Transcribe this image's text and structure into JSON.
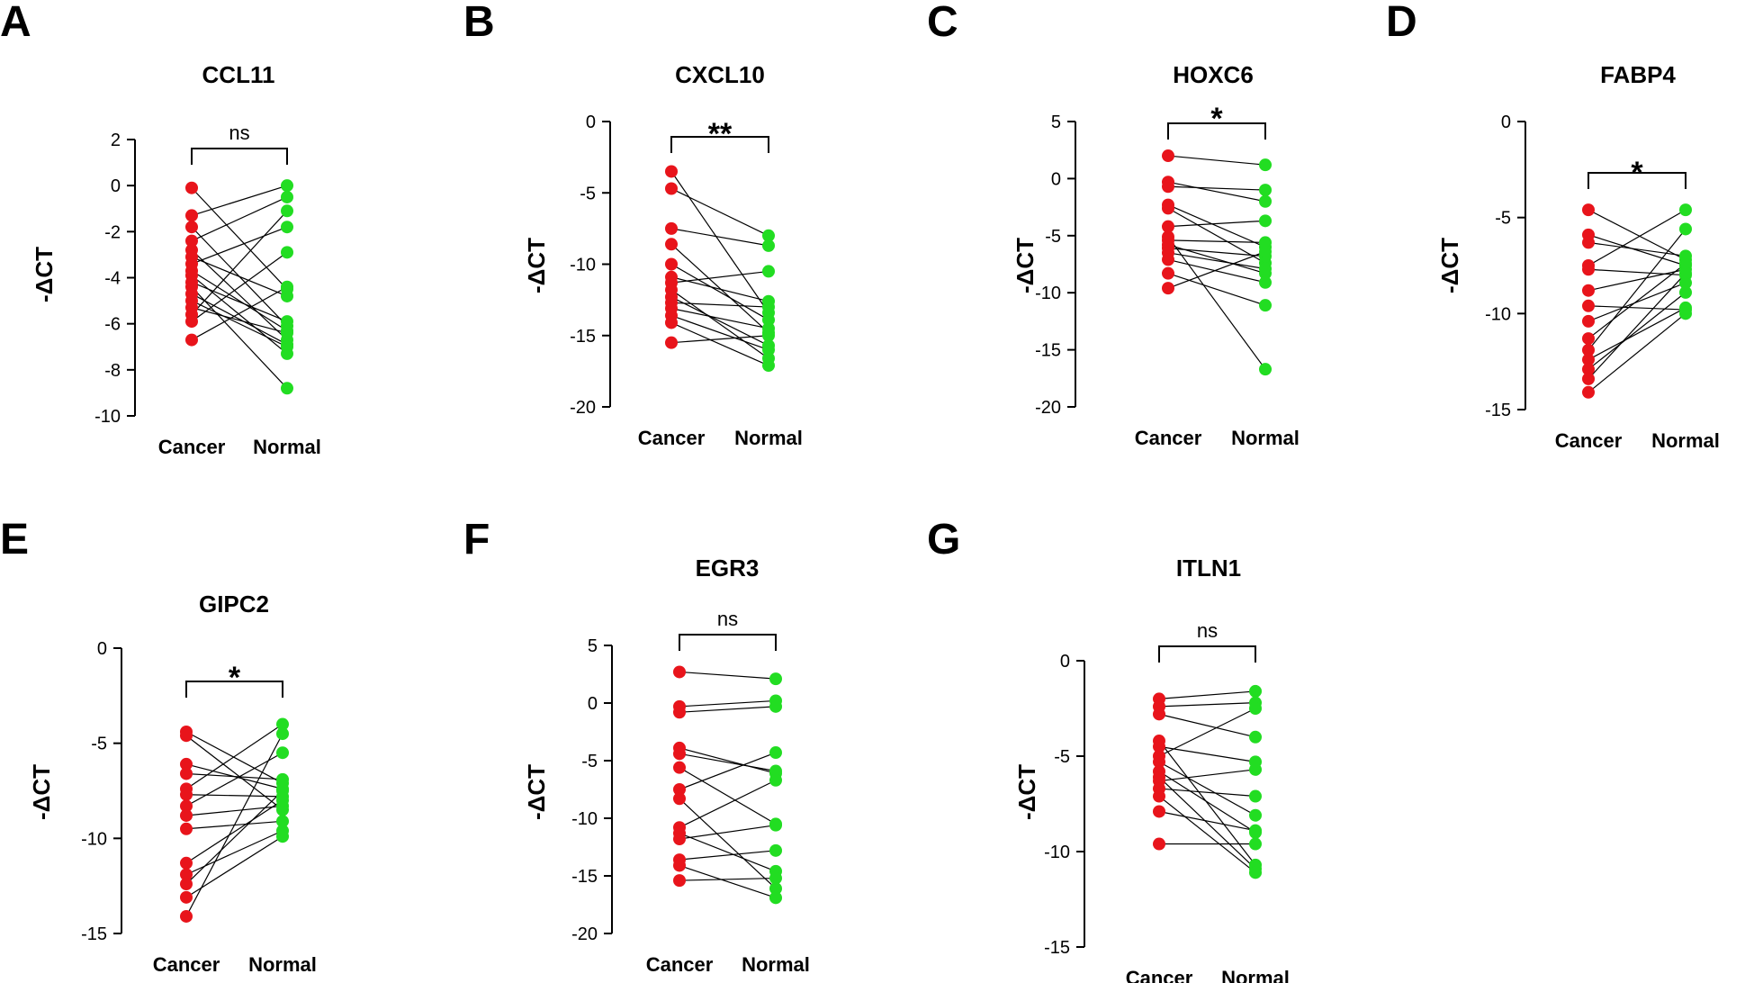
{
  "figure": {
    "point_colors": {
      "Cancer": "#e8141b",
      "Normal": "#22dd22"
    },
    "line_color": "#000000"
  },
  "chart_data": [
    {
      "panel": "A",
      "type": "scatter",
      "title": "CCL11",
      "ylabel": "-ΔCT",
      "categories": [
        "Cancer",
        "Normal"
      ],
      "ylim": [
        -10,
        2
      ],
      "yticks": [
        2,
        0,
        -2,
        -4,
        -6,
        -8,
        -10
      ],
      "ytick_labels": [
        "2",
        "0",
        "-2",
        "-4",
        "-6",
        "-8",
        "-10"
      ],
      "significance": "ns",
      "series": [
        {
          "name": "Cancer",
          "values": [
            -0.1,
            -1.3,
            -1.8,
            -2.4,
            -2.8,
            -3.1,
            -3.4,
            -3.7,
            -3.9,
            -4.2,
            -4.4,
            -4.7,
            -5.0,
            -5.3,
            -5.6,
            -5.9,
            -6.7
          ]
        },
        {
          "name": "Normal",
          "values": [
            -4.5,
            0.0,
            -6.1,
            -0.5,
            -6.7,
            -4.8,
            -1.8,
            -6.3,
            -7.3,
            -5.9,
            -8.8,
            -6.9,
            -7.0,
            -6.4,
            -1.1,
            -2.9,
            -4.4
          ]
        }
      ]
    },
    {
      "panel": "B",
      "type": "scatter",
      "title": "CXCL10",
      "ylabel": "-ΔCT",
      "categories": [
        "Cancer",
        "Normal"
      ],
      "ylim": [
        -20,
        0
      ],
      "yticks": [
        0,
        -5,
        -10,
        -15,
        -20
      ],
      "ytick_labels": [
        "0",
        "-5",
        "-10",
        "-15",
        "-20"
      ],
      "significance": "**",
      "series": [
        {
          "name": "Cancer",
          "values": [
            -3.5,
            -4.7,
            -7.5,
            -8.6,
            -10.0,
            -10.9,
            -11.3,
            -11.8,
            -12.3,
            -12.7,
            -13.1,
            -13.6,
            -14.1,
            -15.5
          ]
        },
        {
          "name": "Normal",
          "values": [
            -13.4,
            -8.0,
            -8.7,
            -14.8,
            -13.9,
            -12.6,
            -10.5,
            -16.6,
            -15.7,
            -13.0,
            -14.5,
            -16.0,
            -17.1,
            -15.0
          ]
        }
      ]
    },
    {
      "panel": "C",
      "type": "scatter",
      "title": "HOXC6",
      "ylabel": "-ΔCT",
      "categories": [
        "Cancer",
        "Normal"
      ],
      "ylim": [
        -20,
        5
      ],
      "yticks": [
        5,
        0,
        -5,
        -10,
        -15,
        -20
      ],
      "ytick_labels": [
        "5",
        "0",
        "-5",
        "-10",
        "-15",
        "-20"
      ],
      "significance": "*",
      "series": [
        {
          "name": "Cancer",
          "values": [
            2.0,
            -0.3,
            -0.7,
            -2.3,
            -2.6,
            -4.2,
            -5.1,
            -5.4,
            -5.8,
            -6.1,
            -6.5,
            -7.1,
            -8.3,
            -9.6
          ]
        },
        {
          "name": "Normal",
          "values": [
            1.2,
            -2.0,
            -1.0,
            -6.0,
            -7.4,
            -3.7,
            -16.7,
            -5.6,
            -8.3,
            -6.8,
            -7.9,
            -9.1,
            -11.1,
            -6.4
          ]
        }
      ]
    },
    {
      "panel": "D",
      "type": "scatter",
      "title": "FABP4",
      "ylabel": "-ΔCT",
      "categories": [
        "Cancer",
        "Normal"
      ],
      "ylim": [
        -15,
        0
      ],
      "yticks": [
        0,
        -5,
        -10,
        -15
      ],
      "ytick_labels": [
        "0",
        "-5",
        "-10",
        "-15"
      ],
      "significance": "*",
      "series": [
        {
          "name": "Cancer",
          "values": [
            -4.6,
            -5.9,
            -6.3,
            -7.5,
            -7.7,
            -8.8,
            -9.6,
            -10.4,
            -11.3,
            -11.9,
            -12.4,
            -12.9,
            -13.4,
            -14.1
          ]
        },
        {
          "name": "Normal",
          "values": [
            -7.2,
            -7.5,
            -7.0,
            -4.6,
            -8.0,
            -7.7,
            -9.8,
            -8.4,
            -7.4,
            -5.6,
            -9.7,
            -8.9,
            -7.9,
            -10.0
          ]
        }
      ]
    },
    {
      "panel": "E",
      "type": "scatter",
      "title": "GIPC2",
      "ylabel": "-ΔCT",
      "categories": [
        "Cancer",
        "Normal"
      ],
      "ylim": [
        -15,
        0
      ],
      "yticks": [
        0,
        -5,
        -10,
        -15
      ],
      "ytick_labels": [
        "0",
        "-5",
        "-10",
        "-15"
      ],
      "significance": "*",
      "series": [
        {
          "name": "Cancer",
          "values": [
            -4.4,
            -4.6,
            -6.1,
            -6.6,
            -7.4,
            -7.7,
            -8.3,
            -8.8,
            -9.5,
            -11.3,
            -11.9,
            -12.4,
            -13.1,
            -14.1
          ]
        },
        {
          "name": "Normal",
          "values": [
            -7.1,
            -8.5,
            -7.4,
            -6.9,
            -4.0,
            -7.8,
            -5.5,
            -8.3,
            -9.1,
            -8.0,
            -9.6,
            -7.5,
            -9.9,
            -4.5
          ]
        }
      ]
    },
    {
      "panel": "F",
      "type": "scatter",
      "title": "EGR3",
      "ylabel": "-ΔCT",
      "categories": [
        "Cancer",
        "Normal"
      ],
      "ylim": [
        -20,
        5
      ],
      "yticks": [
        5,
        0,
        -5,
        -10,
        -15,
        -20
      ],
      "ytick_labels": [
        "5",
        "0",
        "-5",
        "-10",
        "-15",
        "-20"
      ],
      "significance": "ns",
      "series": [
        {
          "name": "Cancer",
          "values": [
            2.7,
            -0.3,
            -0.8,
            -3.9,
            -4.4,
            -5.6,
            -7.5,
            -8.3,
            -10.8,
            -11.3,
            -11.8,
            -13.6,
            -14.1,
            -15.4
          ]
        },
        {
          "name": "Normal",
          "values": [
            2.1,
            0.2,
            -0.3,
            -6.1,
            -5.9,
            -10.5,
            -4.3,
            -16.1,
            -6.7,
            -14.6,
            -10.6,
            -12.8,
            -16.9,
            -15.2
          ]
        }
      ]
    },
    {
      "panel": "G",
      "type": "scatter",
      "title": "ITLN1",
      "ylabel": "-ΔCT",
      "categories": [
        "Cancer",
        "Normal"
      ],
      "ylim": [
        -15,
        0
      ],
      "yticks": [
        0,
        -5,
        -10,
        -15
      ],
      "ytick_labels": [
        "0",
        "-5",
        "-10",
        "-15"
      ],
      "significance": "ns",
      "series": [
        {
          "name": "Cancer",
          "values": [
            -2.0,
            -2.4,
            -2.8,
            -4.2,
            -4.5,
            -5.0,
            -5.3,
            -5.8,
            -6.1,
            -6.3,
            -6.7,
            -7.1,
            -7.9,
            -9.6
          ]
        },
        {
          "name": "Normal",
          "values": [
            -1.6,
            -2.2,
            -4.0,
            -10.7,
            -5.3,
            -2.5,
            -8.1,
            -9.0,
            -10.9,
            -5.7,
            -7.1,
            -11.1,
            -8.9,
            -9.6
          ]
        }
      ]
    }
  ]
}
